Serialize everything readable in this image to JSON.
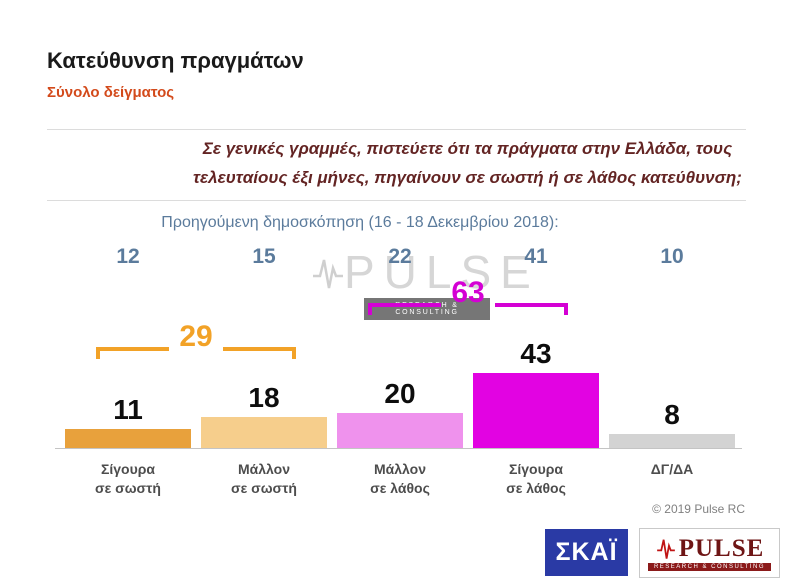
{
  "header": {
    "title": "Κατεύθυνση πραγμάτων",
    "subtitle": "Σύνολο δείγματος"
  },
  "watermark": {
    "name": "PULSE",
    "sub": "RESEARCH & CONSULTING"
  },
  "footer": {
    "copyright": "© 2019 Pulse RC",
    "skai_logo": "ΣΚΑΪ",
    "pulse_logo": "PULSE",
    "pulse_sub": "RESEARCH & CONSULTING"
  },
  "chart_data": {
    "type": "bar",
    "title": "Κατεύθυνση πραγμάτων",
    "subtitle": "Σύνολο δείγματος",
    "question_lines": [
      "Σε γενικές γραμμές, πιστεύετε ότι τα πράγματα στην Ελλάδα, τους",
      "τελευταίους έξι μήνες, πηγαίνουν σε σωστή ή σε λάθος κατεύθυνση;"
    ],
    "previous_label": "Προηγούμενη δημοσκόπηση (16 - 18 Δεκεμβρίου 2018):",
    "categories": [
      "Σίγουρα σε σωστή",
      "Μάλλον σε σωστή",
      "Μάλλον σε λάθος",
      "Σίγουρα σε λάθος",
      "ΔΓ/ΔΑ"
    ],
    "category_labels": [
      [
        "Σίγουρα",
        "σε σωστή"
      ],
      [
        "Μάλλον",
        "σε σωστή"
      ],
      [
        "Μάλλον",
        "σε λάθος"
      ],
      [
        "Σίγουρα",
        "σε λάθος"
      ],
      [
        "ΔΓ/ΔΑ"
      ]
    ],
    "values": [
      11,
      18,
      20,
      43,
      8
    ],
    "previous_values": [
      12,
      15,
      22,
      41,
      10
    ],
    "bar_colors": [
      "#E8A13C",
      "#F6CE8C",
      "#EF92ED",
      "#E203E2",
      "#D3D3D3"
    ],
    "value_label_color": "#0d0d0d",
    "previous_color": "#5b7b9c",
    "brackets": [
      {
        "label": 29,
        "from": 0,
        "to": 1,
        "color": "#F2A227"
      },
      {
        "label": 63,
        "from": 2,
        "to": 3,
        "color": "#D400D4"
      }
    ],
    "ylim": [
      0,
      50
    ],
    "grid": false,
    "legend": false
  }
}
